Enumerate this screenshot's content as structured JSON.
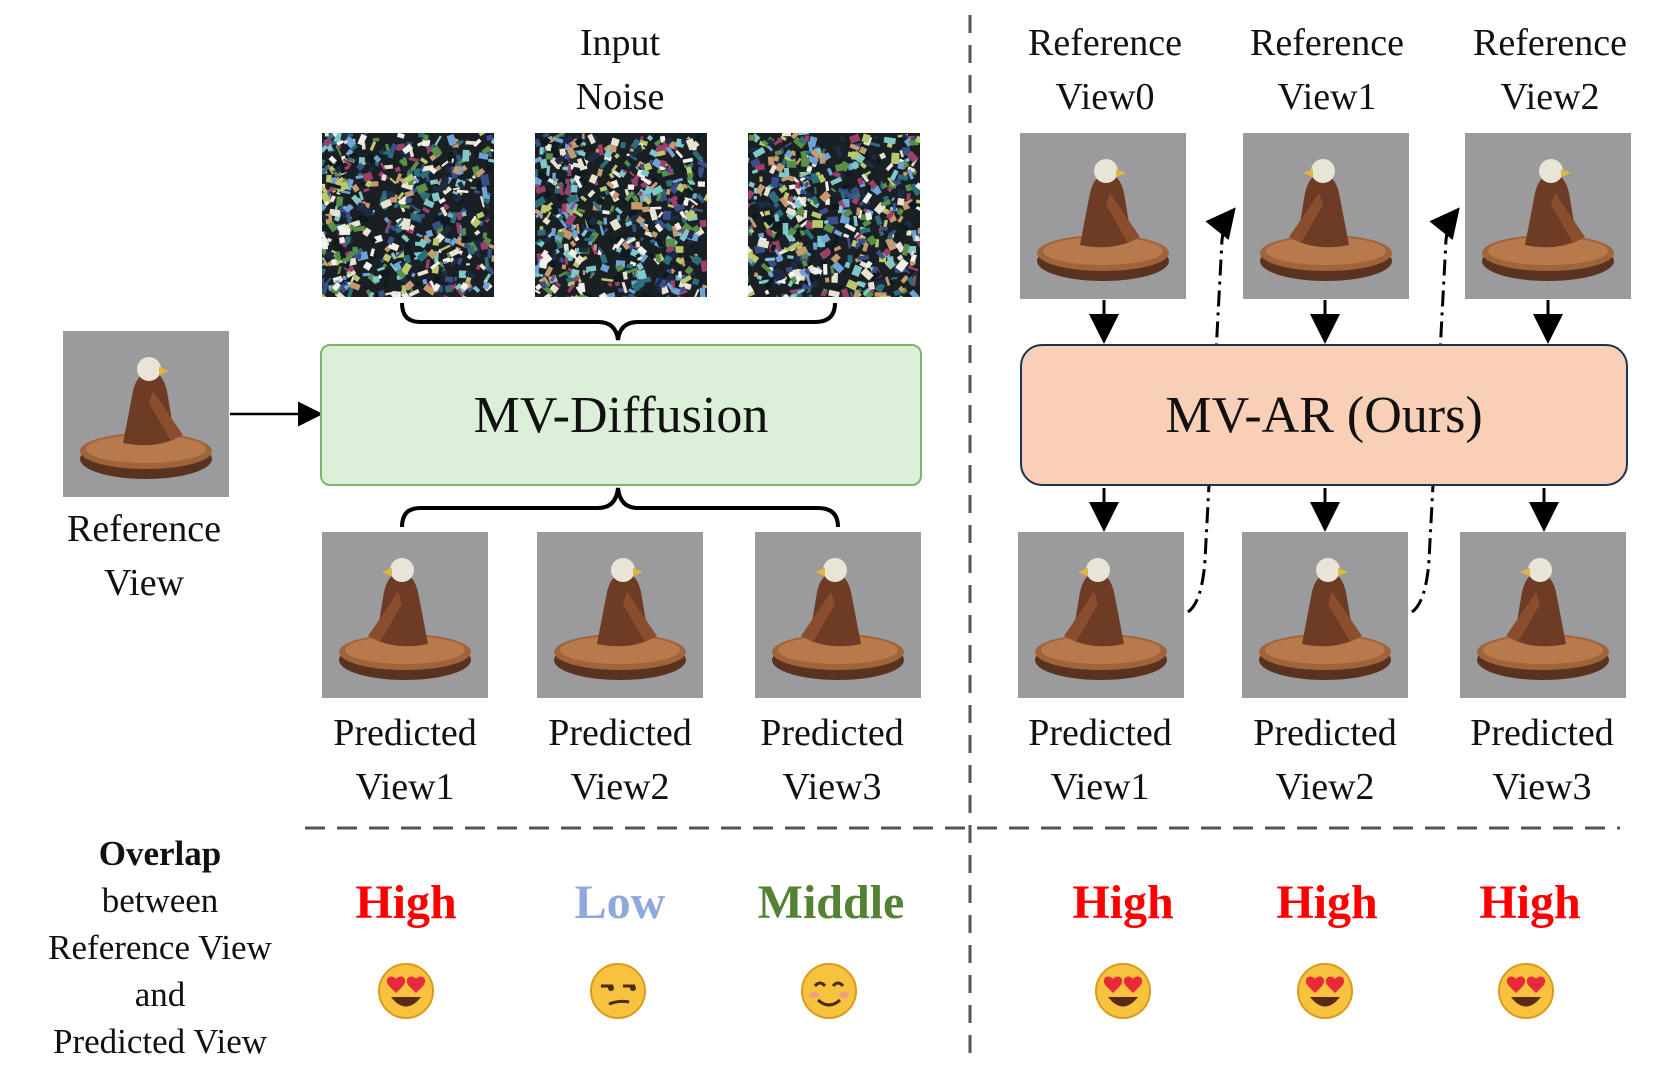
{
  "diffusion": {
    "input_noise_label": "Input\nNoise",
    "box_label": "MV-Diffusion",
    "reference_label": "Reference\nView",
    "predicted": [
      "Predicted\nView1",
      "Predicted\nView2",
      "Predicted\nView3"
    ],
    "overlap": [
      {
        "text": "High",
        "color": "#ff0000",
        "emoji": "heart-eyes"
      },
      {
        "text": "Low",
        "color": "#8fa9dc",
        "emoji": "unamused"
      },
      {
        "text": "Middle",
        "color": "#548235",
        "emoji": "smiling"
      }
    ]
  },
  "ar": {
    "box_label": "MV-AR (Ours)",
    "references": [
      "Reference\nView0",
      "Reference\nView1",
      "Reference\nView2"
    ],
    "predicted": [
      "Predicted\nView1",
      "Predicted\nView2",
      "Predicted\nView3"
    ],
    "overlap": [
      {
        "text": "High",
        "color": "#ff0000",
        "emoji": "heart-eyes"
      },
      {
        "text": "High",
        "color": "#ff0000",
        "emoji": "heart-eyes"
      },
      {
        "text": "High",
        "color": "#ff0000",
        "emoji": "heart-eyes"
      }
    ]
  },
  "overlap_caption": {
    "title": "Overlap",
    "rest": "between\nReference View\nand\nPredicted View"
  },
  "colors": {
    "diffusion_box_fill": "#dcefd8",
    "diffusion_box_border": "#82b366",
    "ar_box_fill": "#f8cfb7",
    "ar_box_border": "#1f3250"
  }
}
